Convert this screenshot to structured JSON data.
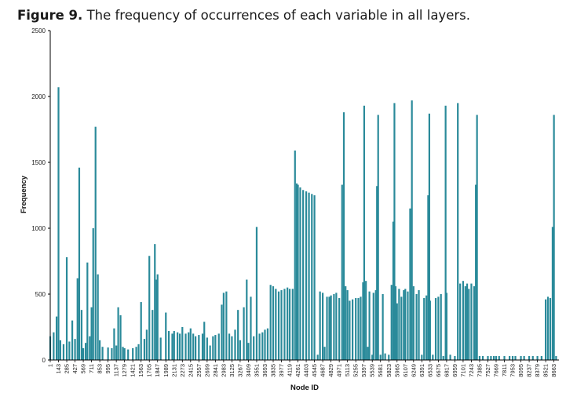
{
  "figure": {
    "label": "Figure 9.",
    "text": "The frequency of occurrences of each variable in all layers."
  },
  "chart_data": {
    "type": "bar",
    "xlabel": "Node ID",
    "ylabel": "Frequency",
    "xlim": [
      1,
      8749
    ],
    "ylim": [
      0,
      2500
    ],
    "yticks": [
      0,
      500,
      1000,
      1500,
      2000,
      2500
    ],
    "xticks": [
      1,
      143,
      285,
      427,
      569,
      711,
      853,
      995,
      1137,
      1279,
      1421,
      1563,
      1705,
      1847,
      1989,
      2131,
      2273,
      2415,
      2557,
      2699,
      2841,
      2983,
      3125,
      3267,
      3409,
      3551,
      3693,
      3835,
      3977,
      4119,
      4261,
      4403,
      4545,
      4687,
      4829,
      4971,
      5113,
      5255,
      5397,
      5539,
      5681,
      5823,
      5965,
      6107,
      6249,
      6391,
      6533,
      6675,
      6817,
      6959,
      7101,
      7243,
      7385,
      7527,
      7669,
      7811,
      7953,
      8095,
      8237,
      8379,
      8521,
      8663
    ],
    "bar_color": "#2a8a9a",
    "grid": false,
    "legend": "none",
    "series": [
      {
        "values": [
          [
            1,
            180
          ],
          [
            60,
            210
          ],
          [
            110,
            330
          ],
          [
            143,
            2070
          ],
          [
            175,
            150
          ],
          [
            230,
            120
          ],
          [
            285,
            780
          ],
          [
            330,
            140
          ],
          [
            380,
            300
          ],
          [
            427,
            160
          ],
          [
            470,
            620
          ],
          [
            500,
            1460
          ],
          [
            540,
            380
          ],
          [
            569,
            90
          ],
          [
            610,
            130
          ],
          [
            640,
            740
          ],
          [
            680,
            180
          ],
          [
            711,
            400
          ],
          [
            740,
            1000
          ],
          [
            780,
            1770
          ],
          [
            820,
            650
          ],
          [
            853,
            150
          ],
          [
            900,
            100
          ],
          [
            995,
            95
          ],
          [
            1060,
            90
          ],
          [
            1100,
            240
          ],
          [
            1137,
            110
          ],
          [
            1170,
            400
          ],
          [
            1210,
            340
          ],
          [
            1250,
            100
          ],
          [
            1279,
            90
          ],
          [
            1340,
            80
          ],
          [
            1421,
            90
          ],
          [
            1480,
            100
          ],
          [
            1520,
            120
          ],
          [
            1563,
            440
          ],
          [
            1620,
            160
          ],
          [
            1660,
            230
          ],
          [
            1705,
            790
          ],
          [
            1760,
            380
          ],
          [
            1800,
            880
          ],
          [
            1830,
            610
          ],
          [
            1847,
            650
          ],
          [
            1900,
            170
          ],
          [
            1989,
            360
          ],
          [
            2040,
            220
          ],
          [
            2100,
            200
          ],
          [
            2131,
            220
          ],
          [
            2190,
            210
          ],
          [
            2230,
            200
          ],
          [
            2273,
            250
          ],
          [
            2330,
            200
          ],
          [
            2380,
            210
          ],
          [
            2415,
            240
          ],
          [
            2460,
            200
          ],
          [
            2500,
            180
          ],
          [
            2557,
            190
          ],
          [
            2620,
            200
          ],
          [
            2650,
            290
          ],
          [
            2699,
            170
          ],
          [
            2750,
            110
          ],
          [
            2800,
            180
          ],
          [
            2841,
            190
          ],
          [
            2900,
            200
          ],
          [
            2950,
            420
          ],
          [
            2983,
            510
          ],
          [
            3030,
            520
          ],
          [
            3080,
            200
          ],
          [
            3125,
            180
          ],
          [
            3180,
            230
          ],
          [
            3230,
            380
          ],
          [
            3267,
            150
          ],
          [
            3330,
            400
          ],
          [
            3380,
            610
          ],
          [
            3409,
            130
          ],
          [
            3450,
            480
          ],
          [
            3500,
            180
          ],
          [
            3551,
            1010
          ],
          [
            3600,
            200
          ],
          [
            3650,
            210
          ],
          [
            3693,
            230
          ],
          [
            3740,
            240
          ],
          [
            3790,
            570
          ],
          [
            3835,
            560
          ],
          [
            3880,
            540
          ],
          [
            3930,
            520
          ],
          [
            3977,
            530
          ],
          [
            4030,
            540
          ],
          [
            4080,
            550
          ],
          [
            4119,
            540
          ],
          [
            4170,
            540
          ],
          [
            4210,
            1590
          ],
          [
            4240,
            1340
          ],
          [
            4261,
            1330
          ],
          [
            4300,
            1310
          ],
          [
            4350,
            1290
          ],
          [
            4403,
            1280
          ],
          [
            4450,
            1270
          ],
          [
            4500,
            1260
          ],
          [
            4545,
            1250
          ],
          [
            4600,
            40
          ],
          [
            4640,
            520
          ],
          [
            4687,
            510
          ],
          [
            4720,
            100
          ],
          [
            4760,
            480
          ],
          [
            4800,
            480
          ],
          [
            4829,
            490
          ],
          [
            4880,
            500
          ],
          [
            4920,
            510
          ],
          [
            4971,
            470
          ],
          [
            5020,
            1330
          ],
          [
            5050,
            1880
          ],
          [
            5080,
            560
          ],
          [
            5113,
            530
          ],
          [
            5150,
            450
          ],
          [
            5200,
            460
          ],
          [
            5255,
            470
          ],
          [
            5300,
            470
          ],
          [
            5340,
            480
          ],
          [
            5380,
            590
          ],
          [
            5400,
            1930
          ],
          [
            5430,
            600
          ],
          [
            5460,
            100
          ],
          [
            5490,
            520
          ],
          [
            5539,
            40
          ],
          [
            5560,
            510
          ],
          [
            5600,
            530
          ],
          [
            5620,
            1320
          ],
          [
            5640,
            1860
          ],
          [
            5681,
            40
          ],
          [
            5720,
            500
          ],
          [
            5760,
            50
          ],
          [
            5823,
            40
          ],
          [
            5870,
            570
          ],
          [
            5900,
            1050
          ],
          [
            5920,
            1950
          ],
          [
            5940,
            560
          ],
          [
            5965,
            430
          ],
          [
            6000,
            540
          ],
          [
            6040,
            480
          ],
          [
            6080,
            530
          ],
          [
            6107,
            540
          ],
          [
            6150,
            520
          ],
          [
            6190,
            1150
          ],
          [
            6220,
            1970
          ],
          [
            6249,
            560
          ],
          [
            6300,
            500
          ],
          [
            6340,
            530
          ],
          [
            6391,
            40
          ],
          [
            6430,
            470
          ],
          [
            6470,
            490
          ],
          [
            6500,
            1250
          ],
          [
            6520,
            1870
          ],
          [
            6533,
            450
          ],
          [
            6580,
            40
          ],
          [
            6630,
            470
          ],
          [
            6675,
            480
          ],
          [
            6720,
            500
          ],
          [
            6760,
            30
          ],
          [
            6800,
            1930
          ],
          [
            6817,
            510
          ],
          [
            6880,
            40
          ],
          [
            6959,
            30
          ],
          [
            7010,
            1950
          ],
          [
            7050,
            580
          ],
          [
            7101,
            600
          ],
          [
            7140,
            560
          ],
          [
            7170,
            580
          ],
          [
            7200,
            540
          ],
          [
            7243,
            580
          ],
          [
            7290,
            560
          ],
          [
            7320,
            1330
          ],
          [
            7340,
            1860
          ],
          [
            7385,
            30
          ],
          [
            7440,
            30
          ],
          [
            7527,
            30
          ],
          [
            7580,
            30
          ],
          [
            7630,
            30
          ],
          [
            7669,
            30
          ],
          [
            7720,
            30
          ],
          [
            7811,
            30
          ],
          [
            7900,
            30
          ],
          [
            7953,
            30
          ],
          [
            8000,
            30
          ],
          [
            8095,
            30
          ],
          [
            8150,
            30
          ],
          [
            8237,
            30
          ],
          [
            8300,
            30
          ],
          [
            8379,
            30
          ],
          [
            8450,
            30
          ],
          [
            8521,
            460
          ],
          [
            8560,
            480
          ],
          [
            8600,
            470
          ],
          [
            8640,
            1010
          ],
          [
            8663,
            1860
          ],
          [
            8700,
            30
          ]
        ]
      }
    ]
  }
}
